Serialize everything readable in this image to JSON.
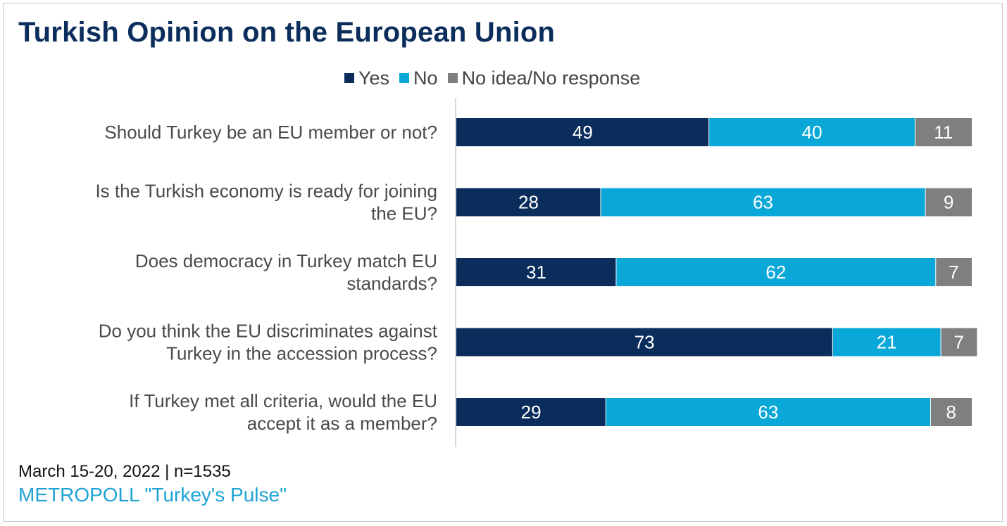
{
  "chart_data": {
    "type": "bar",
    "orientation": "horizontal",
    "stacked": true,
    "title": "Turkish Opinion on the European Union",
    "categories": [
      [
        "Should Turkey be an EU member or not?"
      ],
      [
        "Is the Turkish economy is ready for joining",
        "the EU?"
      ],
      [
        "Does democracy in Turkey match EU",
        "standards?"
      ],
      [
        "Do you think the EU discriminates against",
        "Turkey in the accession process?"
      ],
      [
        "If Turkey met all criteria, would the EU",
        "accept it as a member?"
      ]
    ],
    "series": [
      {
        "name": "Yes",
        "color": "#0b2d5c",
        "values": [
          49,
          28,
          31,
          73,
          29
        ]
      },
      {
        "name": "No",
        "color": "#0aa8d8",
        "values": [
          40,
          63,
          62,
          21,
          63
        ]
      },
      {
        "name": "No idea/No response",
        "color": "#7f7f7f",
        "values": [
          11,
          9,
          7,
          7,
          8
        ]
      }
    ],
    "xlim": [
      0,
      100
    ],
    "legend_position": "top",
    "grid": false
  },
  "footer": {
    "date_sample": "March 15-20, 2022 | n=1535",
    "source": "METROPOLL \"Turkey's Pulse\""
  }
}
